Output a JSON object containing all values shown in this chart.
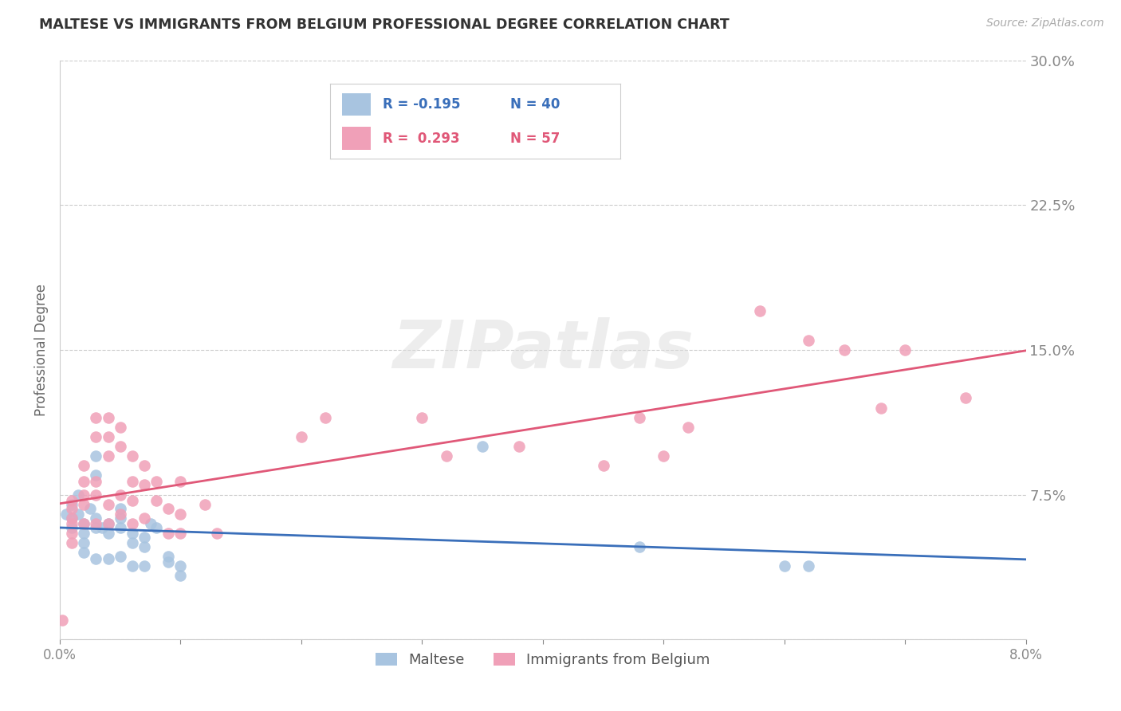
{
  "title": "MALTESE VS IMMIGRANTS FROM BELGIUM PROFESSIONAL DEGREE CORRELATION CHART",
  "source": "Source: ZipAtlas.com",
  "ylabel_label": "Professional Degree",
  "x_min": 0.0,
  "x_max": 0.08,
  "y_min": 0.0,
  "y_max": 0.3,
  "x_ticks": [
    0.0,
    0.01,
    0.02,
    0.03,
    0.04,
    0.05,
    0.06,
    0.07,
    0.08
  ],
  "x_tick_labels": [
    "0.0%",
    "",
    "",
    "",
    "",
    "",
    "",
    "",
    "8.0%"
  ],
  "y_ticks": [
    0.0,
    0.075,
    0.15,
    0.225,
    0.3
  ],
  "y_tick_labels": [
    "",
    "7.5%",
    "15.0%",
    "22.5%",
    "30.0%"
  ],
  "y_tick_color": "#4f9ede",
  "grid_color": "#cccccc",
  "background_color": "#ffffff",
  "maltese_color": "#a8c4e0",
  "belgium_color": "#f0a0b8",
  "maltese_line_color": "#3a6fba",
  "belgium_line_color": "#e05878",
  "maltese_R": -0.195,
  "maltese_N": 40,
  "belgium_R": 0.293,
  "belgium_N": 57,
  "legend_label_maltese": "Maltese",
  "legend_label_belgium": "Immigrants from Belgium",
  "watermark": "ZIPatlas",
  "maltese_x": [
    0.0005,
    0.001,
    0.001,
    0.001,
    0.0015,
    0.0015,
    0.002,
    0.002,
    0.002,
    0.002,
    0.0025,
    0.003,
    0.003,
    0.003,
    0.003,
    0.003,
    0.0035,
    0.004,
    0.004,
    0.004,
    0.005,
    0.005,
    0.005,
    0.005,
    0.006,
    0.006,
    0.006,
    0.007,
    0.007,
    0.007,
    0.0075,
    0.008,
    0.009,
    0.009,
    0.01,
    0.01,
    0.035,
    0.048,
    0.06,
    0.062
  ],
  "maltese_y": [
    0.065,
    0.07,
    0.063,
    0.058,
    0.075,
    0.065,
    0.06,
    0.055,
    0.05,
    0.045,
    0.068,
    0.095,
    0.085,
    0.063,
    0.058,
    0.042,
    0.058,
    0.06,
    0.055,
    0.042,
    0.068,
    0.063,
    0.058,
    0.043,
    0.055,
    0.05,
    0.038,
    0.053,
    0.048,
    0.038,
    0.06,
    0.058,
    0.043,
    0.04,
    0.038,
    0.033,
    0.1,
    0.048,
    0.038,
    0.038
  ],
  "belgium_x": [
    0.0002,
    0.001,
    0.001,
    0.001,
    0.001,
    0.001,
    0.001,
    0.002,
    0.002,
    0.002,
    0.002,
    0.002,
    0.003,
    0.003,
    0.003,
    0.003,
    0.003,
    0.004,
    0.004,
    0.004,
    0.004,
    0.004,
    0.005,
    0.005,
    0.005,
    0.005,
    0.006,
    0.006,
    0.006,
    0.006,
    0.007,
    0.007,
    0.007,
    0.008,
    0.008,
    0.009,
    0.009,
    0.01,
    0.01,
    0.01,
    0.012,
    0.013,
    0.02,
    0.022,
    0.03,
    0.032,
    0.038,
    0.045,
    0.048,
    0.05,
    0.052,
    0.058,
    0.062,
    0.065,
    0.068,
    0.07,
    0.075
  ],
  "belgium_y": [
    0.01,
    0.072,
    0.068,
    0.063,
    0.06,
    0.055,
    0.05,
    0.09,
    0.082,
    0.075,
    0.07,
    0.06,
    0.115,
    0.105,
    0.082,
    0.075,
    0.06,
    0.115,
    0.105,
    0.095,
    0.07,
    0.06,
    0.11,
    0.1,
    0.075,
    0.065,
    0.095,
    0.082,
    0.072,
    0.06,
    0.09,
    0.08,
    0.063,
    0.082,
    0.072,
    0.068,
    0.055,
    0.082,
    0.065,
    0.055,
    0.07,
    0.055,
    0.105,
    0.115,
    0.115,
    0.095,
    0.1,
    0.09,
    0.115,
    0.095,
    0.11,
    0.17,
    0.155,
    0.15,
    0.12,
    0.15,
    0.125
  ]
}
